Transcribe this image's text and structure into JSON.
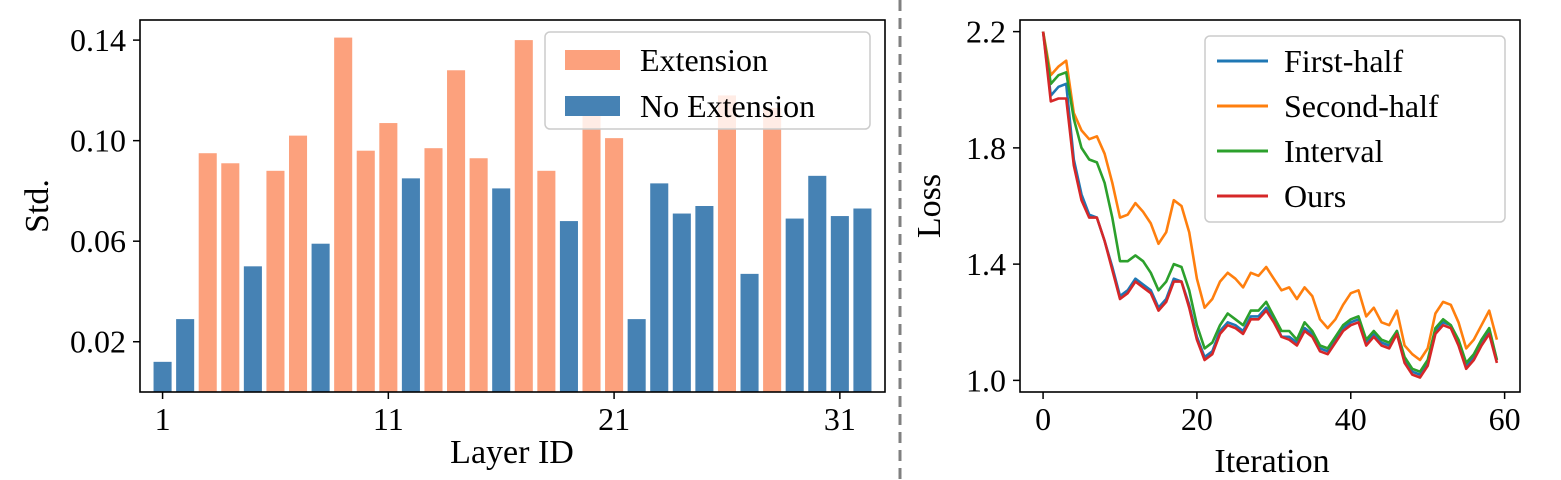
{
  "chart_data": [
    {
      "type": "bar",
      "xlabel": "Layer ID",
      "ylabel": "Std.",
      "x_ticks": [
        1,
        11,
        21,
        31
      ],
      "y_ticks": [
        "0.02",
        "0.06",
        "0.10",
        "0.14"
      ],
      "ylim": [
        0,
        0.148
      ],
      "xlim": [
        0,
        33
      ],
      "legend_position": "upper-right",
      "legend": [
        {
          "label": "Extension",
          "color": "#fca17d"
        },
        {
          "label": "No Extension",
          "color": "#4682b4"
        }
      ],
      "layers": [
        1,
        2,
        3,
        4,
        5,
        6,
        7,
        8,
        9,
        10,
        11,
        12,
        13,
        14,
        15,
        16,
        17,
        18,
        19,
        20,
        21,
        22,
        23,
        24,
        25,
        26,
        27,
        28,
        29,
        30,
        31,
        32
      ],
      "values": [
        0.012,
        0.029,
        0.095,
        0.091,
        0.05,
        0.088,
        0.102,
        0.059,
        0.141,
        0.096,
        0.107,
        0.085,
        0.097,
        0.128,
        0.093,
        0.081,
        0.14,
        0.088,
        0.068,
        0.111,
        0.101,
        0.029,
        0.083,
        0.071,
        0.074,
        0.118,
        0.047,
        0.113,
        0.069,
        0.086,
        0.07,
        0.073
      ],
      "group": [
        "No Extension",
        "No Extension",
        "Extension",
        "Extension",
        "No Extension",
        "Extension",
        "Extension",
        "No Extension",
        "Extension",
        "Extension",
        "Extension",
        "No Extension",
        "Extension",
        "Extension",
        "Extension",
        "No Extension",
        "Extension",
        "Extension",
        "No Extension",
        "Extension",
        "Extension",
        "No Extension",
        "No Extension",
        "No Extension",
        "No Extension",
        "Extension",
        "No Extension",
        "Extension",
        "No Extension",
        "No Extension",
        "No Extension",
        "No Extension"
      ]
    },
    {
      "type": "line",
      "xlabel": "Iteration",
      "ylabel": "Loss",
      "x_ticks": [
        0,
        20,
        40,
        60
      ],
      "y_ticks": [
        "1.0",
        "1.4",
        "1.8",
        "2.2"
      ],
      "xlim": [
        -3,
        62
      ],
      "ylim": [
        0.96,
        2.24
      ],
      "legend_position": "upper-right",
      "x": [
        0,
        1,
        2,
        3,
        4,
        5,
        6,
        7,
        8,
        9,
        10,
        11,
        12,
        13,
        14,
        15,
        16,
        17,
        18,
        19,
        20,
        21,
        22,
        23,
        24,
        25,
        26,
        27,
        28,
        29,
        30,
        31,
        32,
        33,
        34,
        35,
        36,
        37,
        38,
        39,
        40,
        41,
        42,
        43,
        44,
        45,
        46,
        47,
        48,
        49,
        50,
        51,
        52,
        53,
        54,
        55,
        56,
        57,
        58,
        59
      ],
      "series": [
        {
          "name": "First-half",
          "color": "#1f77b4",
          "values": [
            2.2,
            1.98,
            2.01,
            2.02,
            1.76,
            1.64,
            1.57,
            1.56,
            1.48,
            1.39,
            1.29,
            1.31,
            1.35,
            1.33,
            1.31,
            1.25,
            1.28,
            1.35,
            1.34,
            1.26,
            1.15,
            1.08,
            1.1,
            1.17,
            1.2,
            1.19,
            1.17,
            1.22,
            1.22,
            1.25,
            1.21,
            1.15,
            1.15,
            1.13,
            1.18,
            1.16,
            1.11,
            1.1,
            1.14,
            1.18,
            1.2,
            1.21,
            1.13,
            1.16,
            1.13,
            1.12,
            1.17,
            1.07,
            1.03,
            1.02,
            1.06,
            1.17,
            1.2,
            1.19,
            1.13,
            1.05,
            1.08,
            1.13,
            1.17,
            1.07
          ]
        },
        {
          "name": "Second-half",
          "color": "#ff7f0e",
          "values": [
            2.2,
            2.05,
            2.08,
            2.1,
            1.92,
            1.86,
            1.83,
            1.84,
            1.78,
            1.68,
            1.56,
            1.57,
            1.61,
            1.58,
            1.54,
            1.47,
            1.51,
            1.62,
            1.6,
            1.51,
            1.35,
            1.25,
            1.28,
            1.34,
            1.37,
            1.35,
            1.32,
            1.37,
            1.36,
            1.39,
            1.35,
            1.31,
            1.32,
            1.28,
            1.32,
            1.29,
            1.21,
            1.18,
            1.21,
            1.26,
            1.3,
            1.31,
            1.22,
            1.25,
            1.2,
            1.19,
            1.24,
            1.12,
            1.09,
            1.07,
            1.11,
            1.23,
            1.27,
            1.26,
            1.2,
            1.11,
            1.14,
            1.19,
            1.24,
            1.14
          ]
        },
        {
          "name": "Interval",
          "color": "#2ca02c",
          "values": [
            2.2,
            2.02,
            2.05,
            2.06,
            1.9,
            1.8,
            1.76,
            1.75,
            1.68,
            1.56,
            1.41,
            1.41,
            1.43,
            1.41,
            1.37,
            1.31,
            1.34,
            1.4,
            1.39,
            1.31,
            1.19,
            1.11,
            1.13,
            1.19,
            1.23,
            1.21,
            1.19,
            1.24,
            1.24,
            1.27,
            1.22,
            1.17,
            1.17,
            1.14,
            1.2,
            1.17,
            1.12,
            1.11,
            1.15,
            1.19,
            1.21,
            1.22,
            1.14,
            1.17,
            1.14,
            1.13,
            1.17,
            1.08,
            1.04,
            1.03,
            1.07,
            1.18,
            1.21,
            1.19,
            1.14,
            1.06,
            1.09,
            1.14,
            1.18,
            1.07
          ]
        },
        {
          "name": "Ours",
          "color": "#d62728",
          "values": [
            2.2,
            1.96,
            1.97,
            1.97,
            1.74,
            1.62,
            1.56,
            1.56,
            1.48,
            1.38,
            1.28,
            1.3,
            1.34,
            1.32,
            1.3,
            1.24,
            1.27,
            1.34,
            1.34,
            1.25,
            1.14,
            1.07,
            1.09,
            1.16,
            1.19,
            1.18,
            1.16,
            1.21,
            1.21,
            1.24,
            1.2,
            1.15,
            1.14,
            1.12,
            1.17,
            1.15,
            1.1,
            1.09,
            1.13,
            1.17,
            1.19,
            1.2,
            1.12,
            1.15,
            1.12,
            1.11,
            1.16,
            1.06,
            1.02,
            1.01,
            1.05,
            1.16,
            1.19,
            1.18,
            1.12,
            1.04,
            1.07,
            1.12,
            1.16,
            1.06
          ]
        }
      ]
    }
  ]
}
